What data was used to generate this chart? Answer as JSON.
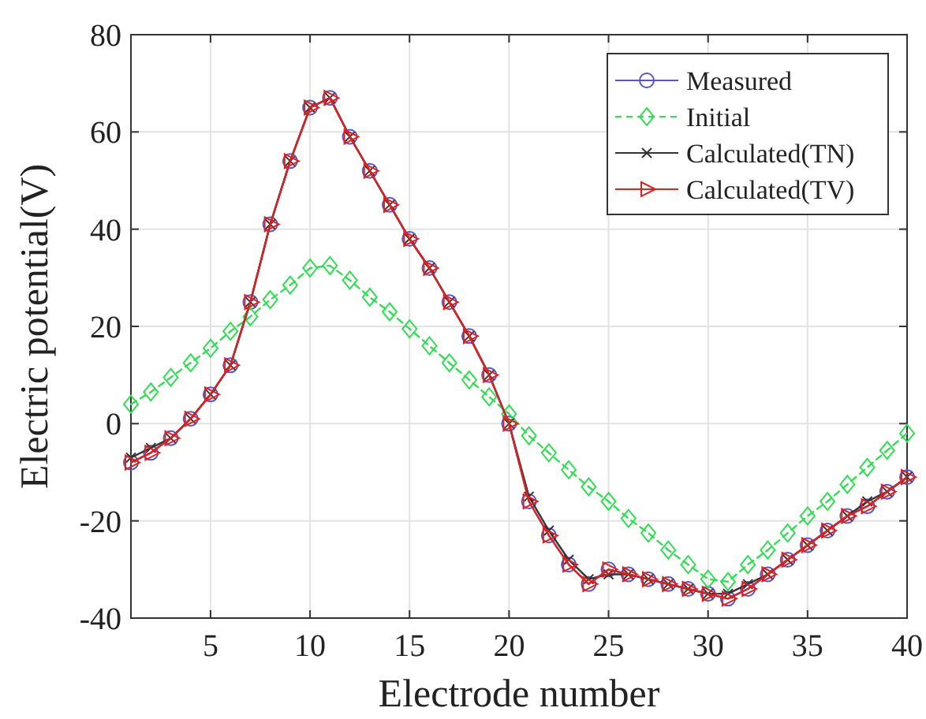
{
  "chart_data": {
    "type": "line",
    "xlabel": "Electrode number",
    "ylabel": "Electric potential(V)",
    "x": [
      1,
      2,
      3,
      4,
      5,
      6,
      7,
      8,
      9,
      10,
      11,
      12,
      13,
      14,
      15,
      16,
      17,
      18,
      19,
      20,
      21,
      22,
      23,
      24,
      25,
      26,
      27,
      28,
      29,
      30,
      31,
      32,
      33,
      34,
      35,
      36,
      37,
      38,
      39,
      40
    ],
    "xlim": [
      1,
      40
    ],
    "xticks": [
      5,
      10,
      15,
      20,
      25,
      30,
      35,
      40
    ],
    "ylim": [
      -40,
      80
    ],
    "yticks": [
      -40,
      -20,
      0,
      20,
      40,
      60,
      80
    ],
    "grid": true,
    "legend": "top right",
    "series": [
      {
        "name": "Measured",
        "color": "#5555cc",
        "marker": "circle",
        "line_style": "solid",
        "values": [
          -8,
          -6,
          -3,
          1,
          6,
          12,
          25,
          41,
          54,
          65,
          67,
          59,
          52,
          45,
          38,
          32,
          25,
          18,
          10,
          0,
          -16,
          -23,
          -29,
          -33,
          -30,
          -31,
          -32,
          -33,
          -34,
          -35,
          -36,
          -34,
          -31,
          -28,
          -25,
          -22,
          -19,
          -17,
          -14,
          -11
        ]
      },
      {
        "name": "Initial",
        "color": "#33dd55",
        "marker": "diamond",
        "line_style": "dashed",
        "values": [
          4,
          6.5,
          9.5,
          12.5,
          15.5,
          19,
          22,
          25.5,
          28.5,
          32,
          32.5,
          29.5,
          26,
          23,
          19.5,
          16,
          12.5,
          9,
          5.5,
          2,
          -2.5,
          -6,
          -9.5,
          -13,
          -16,
          -19.5,
          -22.5,
          -26,
          -29,
          -32,
          -32.5,
          -29,
          -26,
          -22.5,
          -19,
          -16,
          -12.5,
          -9,
          -5.5,
          -2
        ]
      },
      {
        "name": "Calculated(TN)",
        "color": "#333333",
        "marker": "cross",
        "line_style": "solid",
        "values": [
          -7,
          -5,
          -3,
          1,
          6,
          12,
          25,
          41,
          54,
          65,
          67,
          59,
          52,
          45,
          38,
          32,
          25,
          18,
          10,
          0,
          -15,
          -22,
          -28,
          -32,
          -31,
          -31,
          -32,
          -33,
          -34,
          -35,
          -35,
          -33,
          -31,
          -28,
          -25,
          -22,
          -19,
          -16,
          -14,
          -11
        ]
      },
      {
        "name": "Calculated(TV)",
        "color": "#dd2222",
        "marker": "triangle",
        "line_style": "solid",
        "values": [
          -8,
          -6,
          -3,
          1,
          6,
          12,
          25,
          41,
          54,
          65,
          67,
          59,
          52,
          45,
          38,
          32,
          25,
          18,
          10,
          0,
          -16,
          -23,
          -29,
          -33,
          -30,
          -31,
          -32,
          -33,
          -34,
          -35,
          -36,
          -34,
          -31,
          -28,
          -25,
          -22,
          -19,
          -17,
          -14,
          -11
        ]
      }
    ]
  }
}
